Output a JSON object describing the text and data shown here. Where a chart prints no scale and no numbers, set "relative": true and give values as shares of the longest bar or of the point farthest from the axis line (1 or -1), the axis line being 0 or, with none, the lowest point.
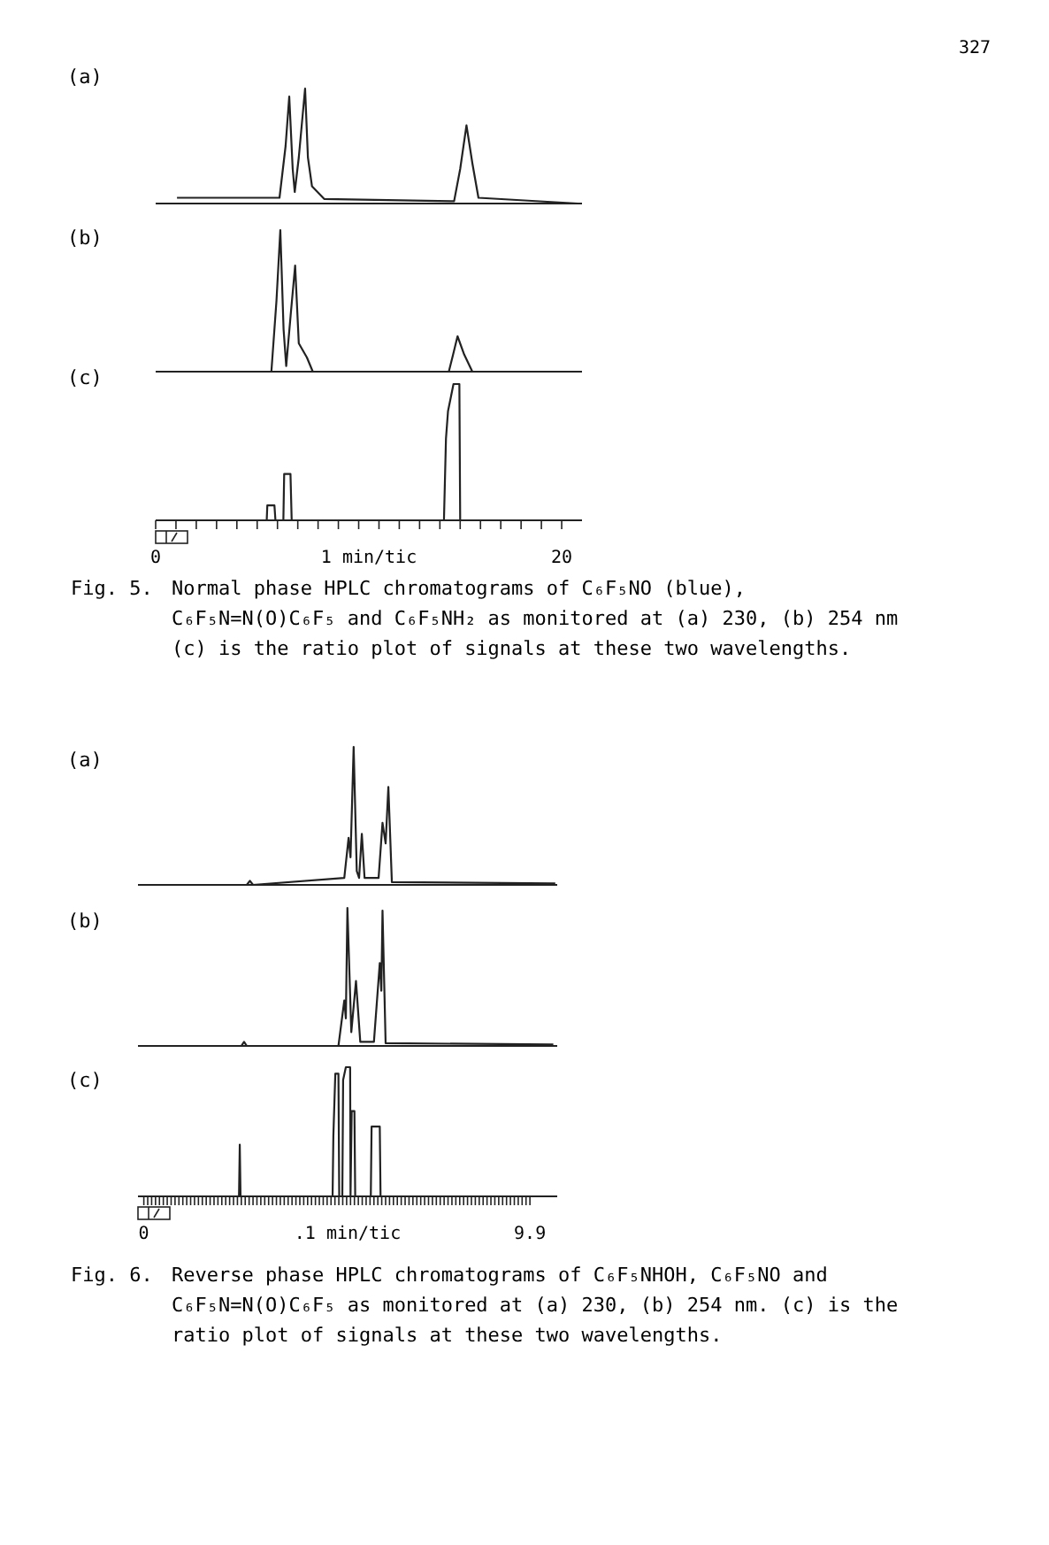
{
  "chart_data": [
    {
      "type": "line",
      "title": "(a)",
      "relative": true,
      "xlim": [
        0,
        21
      ],
      "tick_labels": false,
      "annotations": [
        "327"
      ],
      "series": [
        {
          "color": "#222222",
          "x": [
            1.05,
            6.1,
            6.4,
            6.58,
            6.75,
            6.85,
            7.05,
            7.36,
            7.5,
            7.7,
            8.3,
            14.7,
            15.0,
            15.31,
            15.6,
            15.9,
            20.8
          ],
          "values": [
            0.05,
            0.05,
            0.5,
            0.93,
            0.3,
            0.1,
            0.4,
            1,
            0.4,
            0.15,
            0.04,
            0.02,
            0.3,
            0.68,
            0.35,
            0.05,
            0
          ]
        }
      ]
    },
    {
      "type": "line",
      "title": "(b)",
      "relative": true,
      "xlim": [
        0,
        21
      ],
      "tick_labels": false,
      "series": [
        {
          "color": "#222222",
          "x": [
            0.76,
            5.7,
            5.95,
            6.14,
            6.3,
            6.43,
            6.65,
            6.87,
            7.05,
            7.45,
            7.74,
            14.44,
            14.65,
            14.87,
            15.2,
            15.6,
            20.85
          ],
          "values": [
            0,
            0,
            0.5,
            1,
            0.3,
            0.04,
            0.4,
            0.75,
            0.2,
            0.1,
            0,
            0,
            0.12,
            0.25,
            0.12,
            0,
            0
          ]
        }
      ]
    },
    {
      "type": "line",
      "title": "(c)",
      "relative": true,
      "xlim": [
        0,
        21
      ],
      "tick_labels": "x",
      "xlabel": "1 min/tic",
      "xticks": [
        0,
        {
          "value": 1,
          "label": null
        },
        {
          "value": 2,
          "label": null
        },
        {
          "value": 3,
          "label": null
        },
        {
          "value": 4,
          "label": null
        },
        {
          "value": 5,
          "label": null
        },
        {
          "value": 6,
          "label": null
        },
        {
          "value": 7,
          "label": null
        },
        {
          "value": 8,
          "label": null
        },
        {
          "value": 9,
          "label": null
        },
        {
          "value": 10,
          "label": null
        },
        {
          "value": 11,
          "label": null
        },
        {
          "value": 12,
          "label": null
        },
        {
          "value": 13,
          "label": null
        },
        {
          "value": 14,
          "label": null
        },
        {
          "value": 15,
          "label": null
        },
        {
          "value": 16,
          "label": null
        },
        {
          "value": 17,
          "label": null
        },
        {
          "value": 18,
          "label": null
        },
        {
          "value": 19,
          "label": null
        },
        20
      ],
      "annotations": [
        "Fig. 5. Normal phase HPLC chromatograms of C₆F₅NO (blue), C₆F₅N=N(O)C₆F₅ and C₆F₅NH₂ as monitored at (a) 230, (b) 254 nm (c) is the ratio plot of signals at these two wavelengths."
      ],
      "series": [
        {
          "color": "#222222",
          "x": [
            0.32,
            5.47,
            5.5,
            5.85,
            5.9,
            6.29,
            6.33,
            6.64,
            6.7,
            14.2,
            14.3,
            14.4,
            14.67,
            14.96,
            15.0,
            20.55
          ],
          "values": [
            0,
            0,
            0.11,
            0.11,
            0,
            0,
            0.34,
            0.34,
            0,
            0,
            0.6,
            0.8,
            1,
            1,
            0,
            0
          ]
        }
      ]
    },
    {
      "type": "line",
      "title": "(a)",
      "relative": true,
      "xlim": [
        -0.15,
        10.6
      ],
      "tick_labels": false,
      "series": [
        {
          "color": "#222222",
          "x": [
            0.15,
            2.64,
            2.72,
            2.8,
            5.14,
            5.25,
            5.3,
            5.38,
            5.46,
            5.52,
            5.59,
            5.66,
            6.02,
            6.12,
            6.2,
            6.27,
            6.36,
            10.55
          ],
          "values": [
            0,
            0,
            0.03,
            0,
            0.05,
            0.34,
            0.2,
            1,
            0.1,
            0.05,
            0.37,
            0.05,
            0.05,
            0.45,
            0.3,
            0.71,
            0.02,
            0.01
          ]
        }
      ]
    },
    {
      "type": "line",
      "title": "(b)",
      "relative": true,
      "xlim": [
        -0.15,
        10.6
      ],
      "tick_labels": false,
      "series": [
        {
          "color": "#222222",
          "x": [
            0,
            2.5,
            2.57,
            2.64,
            4.99,
            5.14,
            5.18,
            5.22,
            5.32,
            5.44,
            5.55,
            5.9,
            6.05,
            6.09,
            6.12,
            6.2,
            10.5
          ],
          "values": [
            0,
            0,
            0.03,
            0,
            0,
            0.33,
            0.2,
            1,
            0.1,
            0.47,
            0.03,
            0.03,
            0.6,
            0.4,
            0.98,
            0.02,
            0.01
          ]
        }
      ]
    },
    {
      "type": "line",
      "title": "(c)",
      "relative": true,
      "xlim": [
        -0.15,
        10.6
      ],
      "tick_labels": "x",
      "xlabel": ".1 min/tic",
      "xticks": [
        0,
        {
          "value": 0.1,
          "label": null
        },
        {
          "value": 0.2,
          "label": null
        },
        {
          "value": 0.3,
          "label": null
        },
        {
          "value": 0.4,
          "label": null
        },
        {
          "value": 0.5,
          "label": null
        },
        {
          "value": 0.6,
          "label": null
        },
        {
          "value": 0.7,
          "label": null
        },
        {
          "value": 0.8,
          "label": null
        },
        {
          "value": 0.9,
          "label": null
        },
        {
          "value": 1,
          "label": null
        },
        {
          "value": 1.1,
          "label": null
        },
        {
          "value": 1.2,
          "label": null
        },
        {
          "value": 1.3,
          "label": null
        },
        {
          "value": 1.4,
          "label": null
        },
        {
          "value": 1.5,
          "label": null
        },
        {
          "value": 1.6,
          "label": null
        },
        {
          "value": 1.7,
          "label": null
        },
        {
          "value": 1.8,
          "label": null
        },
        {
          "value": 1.9,
          "label": null
        },
        {
          "value": 2,
          "label": null
        },
        {
          "value": 2.1,
          "label": null
        },
        {
          "value": 2.2,
          "label": null
        },
        {
          "value": 2.3,
          "label": null
        },
        {
          "value": 2.4,
          "label": null
        },
        {
          "value": 2.5,
          "label": null
        },
        {
          "value": 2.6,
          "label": null
        },
        {
          "value": 2.7,
          "label": null
        },
        {
          "value": 2.8,
          "label": null
        },
        {
          "value": 2.9,
          "label": null
        },
        {
          "value": 3,
          "label": null
        },
        {
          "value": 3.1,
          "label": null
        },
        {
          "value": 3.2,
          "label": null
        },
        {
          "value": 3.3,
          "label": null
        },
        {
          "value": 3.4,
          "label": null
        },
        {
          "value": 3.5,
          "label": null
        },
        {
          "value": 3.6,
          "label": null
        },
        {
          "value": 3.7,
          "label": null
        },
        {
          "value": 3.8,
          "label": null
        },
        {
          "value": 3.9,
          "label": null
        },
        {
          "value": 4,
          "label": null
        },
        {
          "value": 4.1,
          "label": null
        },
        {
          "value": 4.2,
          "label": null
        },
        {
          "value": 4.3,
          "label": null
        },
        {
          "value": 4.4,
          "label": null
        },
        {
          "value": 4.5,
          "label": null
        },
        {
          "value": 4.6,
          "label": null
        },
        {
          "value": 4.7,
          "label": null
        },
        {
          "value": 4.8,
          "label": null
        },
        {
          "value": 4.9,
          "label": null
        },
        {
          "value": 5,
          "label": null
        },
        {
          "value": 5.1,
          "label": null
        },
        {
          "value": 5.2,
          "label": null
        },
        {
          "value": 5.3,
          "label": null
        },
        {
          "value": 5.4,
          "label": null
        },
        {
          "value": 5.5,
          "label": null
        },
        {
          "value": 5.6,
          "label": null
        },
        {
          "value": 5.7,
          "label": null
        },
        {
          "value": 5.8,
          "label": null
        },
        {
          "value": 5.9,
          "label": null
        },
        {
          "value": 6,
          "label": null
        },
        {
          "value": 6.1,
          "label": null
        },
        {
          "value": 6.2,
          "label": null
        },
        {
          "value": 6.3,
          "label": null
        },
        {
          "value": 6.4,
          "label": null
        },
        {
          "value": 6.5,
          "label": null
        },
        {
          "value": 6.6,
          "label": null
        },
        {
          "value": 6.7,
          "label": null
        },
        {
          "value": 6.8,
          "label": null
        },
        {
          "value": 6.9,
          "label": null
        },
        {
          "value": 7,
          "label": null
        },
        {
          "value": 7.1,
          "label": null
        },
        {
          "value": 7.2,
          "label": null
        },
        {
          "value": 7.3,
          "label": null
        },
        {
          "value": 7.4,
          "label": null
        },
        {
          "value": 7.5,
          "label": null
        },
        {
          "value": 7.6,
          "label": null
        },
        {
          "value": 7.7,
          "label": null
        },
        {
          "value": 7.8,
          "label": null
        },
        {
          "value": 7.9,
          "label": null
        },
        {
          "value": 8,
          "label": null
        },
        {
          "value": 8.1,
          "label": null
        },
        {
          "value": 8.2,
          "label": null
        },
        {
          "value": 8.3,
          "label": null
        },
        {
          "value": 8.4,
          "label": null
        },
        {
          "value": 8.5,
          "label": null
        },
        {
          "value": 8.6,
          "label": null
        },
        {
          "value": 8.7,
          "label": null
        },
        {
          "value": 8.8,
          "label": null
        },
        {
          "value": 8.9,
          "label": null
        },
        {
          "value": 9,
          "label": null
        },
        {
          "value": 9.1,
          "label": null
        },
        {
          "value": 9.2,
          "label": null
        },
        {
          "value": 9.3,
          "label": null
        },
        {
          "value": 9.4,
          "label": null
        },
        {
          "value": 9.5,
          "label": null
        },
        {
          "value": 9.6,
          "label": null
        },
        {
          "value": 9.7,
          "label": null
        },
        {
          "value": 9.8,
          "label": null
        },
        9.9
      ],
      "annotations": [
        "Fig. 6. Reverse phase HPLC chromatograms of C₆F₅NHOH, C₆F₅NO and C₆F₅N=N(O)C₆F₅ as monitored at (a) 230, (b) 254 nm. (c) is the ratio plot of signals at these two wavelengths."
      ],
      "series": [
        {
          "color": "#222222",
          "x": [
            -0.08,
            2.44,
            2.46,
            2.48,
            4.84,
            4.86,
            4.91,
            4.99,
            5.01,
            5.09,
            5.11,
            5.18,
            5.29,
            5.3,
            5.33,
            5.4,
            5.42,
            5.82,
            5.84,
            6.05,
            6.07,
            10.35
          ],
          "values": [
            0,
            0,
            0.4,
            0,
            0,
            0.47,
            0.95,
            0.95,
            0,
            0,
            0.9,
            1,
            1,
            0,
            0.66,
            0.66,
            0,
            0,
            0.54,
            0.54,
            0,
            0
          ]
        }
      ]
    }
  ]
}
